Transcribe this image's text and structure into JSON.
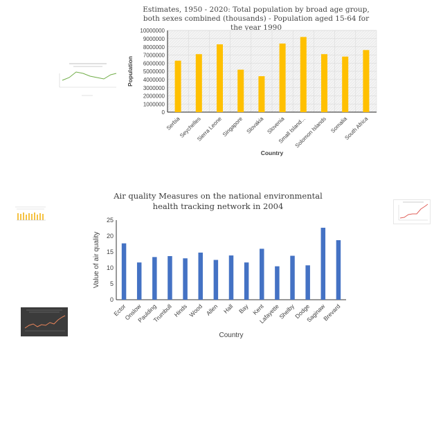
{
  "chart_data": [
    {
      "type": "bar",
      "title": "Estimates, 1950 - 2020: Total population by broad age group, both sexes combined (thousands) - Population aged 15-64 for the year 1990",
      "xlabel": "Country",
      "ylabel": "Population",
      "categories": [
        "Serbia",
        "Seychelles",
        "Sierra Leone",
        "Singapore",
        "Slovakia",
        "Slovenia",
        "Small Island...",
        "Solomon Islands",
        "Somalia",
        "South Africa"
      ],
      "values": [
        6300000,
        7100000,
        8300000,
        5200000,
        4400000,
        8400000,
        9200000,
        7100000,
        6800000,
        7600000
      ],
      "ylim": [
        0,
        10000000
      ],
      "yticks": [
        "0",
        "1000000",
        "2000000",
        "3000000",
        "4000000",
        "5000000",
        "6000000",
        "7000000",
        "8000000",
        "9000000",
        "10000000"
      ],
      "grid": true,
      "color": "#FFC000"
    },
    {
      "type": "bar",
      "title": "Air quality Measures on the national environmental health tracking network in 2004",
      "xlabel": "Country",
      "ylabel": "Value of air quality",
      "categories": [
        "Ector",
        "Onslow",
        "Paulding",
        "Trumbull",
        "Hinds",
        "Wood",
        "Allen",
        "Hall",
        "Bay",
        "Kent",
        "Lafayette",
        "Shelby",
        "Dodge",
        "Saginaw",
        "Brevard"
      ],
      "values": [
        17.7,
        11.7,
        13.4,
        13.7,
        13.0,
        14.8,
        12.5,
        13.9,
        11.7,
        16.0,
        10.5,
        13.8,
        10.8,
        22.6,
        18.7
      ],
      "ylim": [
        0,
        25
      ],
      "yticks": [
        "0",
        "5",
        "10",
        "15",
        "20",
        "25"
      ],
      "grid": false,
      "color": "#4472C4"
    }
  ]
}
